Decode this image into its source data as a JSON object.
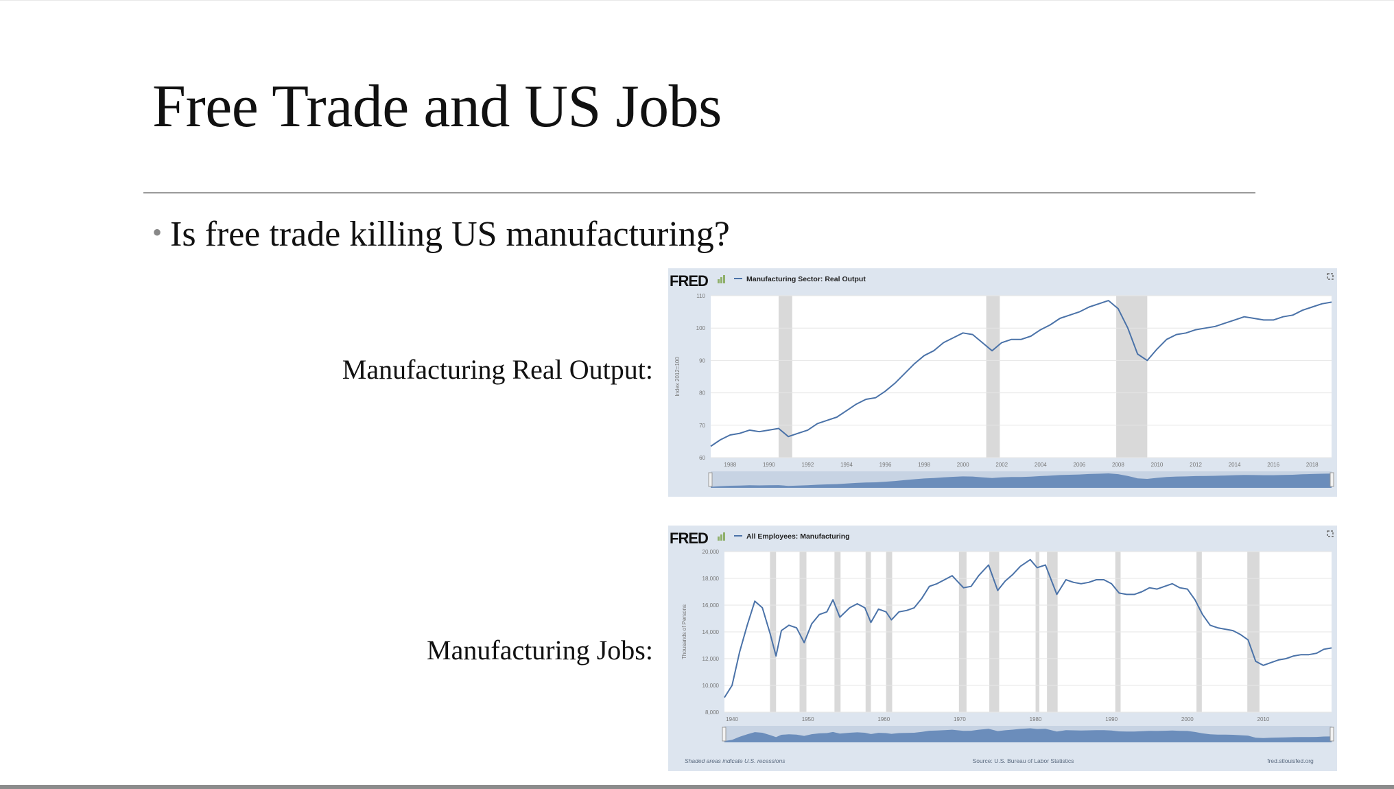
{
  "slide": {
    "title": "Free Trade and US Jobs",
    "bullet": "Is free trade killing US manufacturing?",
    "label_output": "Manufacturing Real Output:",
    "label_jobs": "Manufacturing Jobs:"
  },
  "colors": {
    "series": "#4a72a8",
    "recession": "#d9d9d9",
    "panel": "#dde5ef",
    "plot_bg": "#ffffff"
  },
  "chart_data": [
    {
      "type": "line",
      "brand": "FRED",
      "series_name": "Manufacturing Sector: Real Output",
      "ylabel": "Index 2012=100",
      "ylim": [
        60,
        110
      ],
      "yticks": [
        "60",
        "70",
        "80",
        "90",
        "100",
        "110"
      ],
      "xlim": [
        1987,
        2019
      ],
      "xticks": [
        "1988",
        "1990",
        "1992",
        "1994",
        "1996",
        "1998",
        "2000",
        "2002",
        "2004",
        "2006",
        "2008",
        "2010",
        "2012",
        "2014",
        "2016",
        "2018"
      ],
      "recessions": [
        [
          1990.5,
          1991.2
        ],
        [
          2001.2,
          2001.9
        ],
        [
          2007.9,
          2009.5
        ]
      ],
      "points": [
        [
          1987.0,
          63.5
        ],
        [
          1987.5,
          65.5
        ],
        [
          1988.0,
          67.0
        ],
        [
          1988.5,
          67.5
        ],
        [
          1989.0,
          68.5
        ],
        [
          1989.5,
          68.0
        ],
        [
          1990.0,
          68.5
        ],
        [
          1990.5,
          69.0
        ],
        [
          1991.0,
          66.5
        ],
        [
          1991.5,
          67.5
        ],
        [
          1992.0,
          68.5
        ],
        [
          1992.5,
          70.5
        ],
        [
          1993.0,
          71.5
        ],
        [
          1993.5,
          72.5
        ],
        [
          1994.0,
          74.5
        ],
        [
          1994.5,
          76.5
        ],
        [
          1995.0,
          78.0
        ],
        [
          1995.5,
          78.5
        ],
        [
          1996.0,
          80.5
        ],
        [
          1996.5,
          83.0
        ],
        [
          1997.0,
          86.0
        ],
        [
          1997.5,
          89.0
        ],
        [
          1998.0,
          91.5
        ],
        [
          1998.5,
          93.0
        ],
        [
          1999.0,
          95.5
        ],
        [
          1999.5,
          97.0
        ],
        [
          2000.0,
          98.5
        ],
        [
          2000.5,
          98.0
        ],
        [
          2001.0,
          95.5
        ],
        [
          2001.5,
          93.0
        ],
        [
          2002.0,
          95.5
        ],
        [
          2002.5,
          96.5
        ],
        [
          2003.0,
          96.5
        ],
        [
          2003.5,
          97.5
        ],
        [
          2004.0,
          99.5
        ],
        [
          2004.5,
          101.0
        ],
        [
          2005.0,
          103.0
        ],
        [
          2005.5,
          104.0
        ],
        [
          2006.0,
          105.0
        ],
        [
          2006.5,
          106.5
        ],
        [
          2007.0,
          107.5
        ],
        [
          2007.5,
          108.5
        ],
        [
          2008.0,
          106.0
        ],
        [
          2008.5,
          100.0
        ],
        [
          2009.0,
          92.0
        ],
        [
          2009.5,
          90.0
        ],
        [
          2010.0,
          93.5
        ],
        [
          2010.5,
          96.5
        ],
        [
          2011.0,
          98.0
        ],
        [
          2011.5,
          98.5
        ],
        [
          2012.0,
          99.5
        ],
        [
          2012.5,
          100.0
        ],
        [
          2013.0,
          100.5
        ],
        [
          2013.5,
          101.5
        ],
        [
          2014.0,
          102.5
        ],
        [
          2014.5,
          103.5
        ],
        [
          2015.0,
          103.0
        ],
        [
          2015.5,
          102.5
        ],
        [
          2016.0,
          102.5
        ],
        [
          2016.5,
          103.5
        ],
        [
          2017.0,
          104.0
        ],
        [
          2017.5,
          105.5
        ],
        [
          2018.0,
          106.5
        ],
        [
          2018.5,
          107.5
        ],
        [
          2019.0,
          108.0
        ]
      ]
    },
    {
      "type": "line",
      "brand": "FRED",
      "series_name": "All Employees: Manufacturing",
      "ylabel": "Thousands of Persons",
      "ylim": [
        8000,
        20000
      ],
      "yticks": [
        "8,000",
        "10,000",
        "12,000",
        "14,000",
        "16,000",
        "18,000",
        "20,000"
      ],
      "xlim": [
        1939,
        2019
      ],
      "xticks": [
        "1940",
        "1950",
        "1960",
        "1970",
        "1980",
        "1990",
        "2000",
        "2010"
      ],
      "recessions": [
        [
          1945.0,
          1945.8
        ],
        [
          1948.9,
          1949.8
        ],
        [
          1953.5,
          1954.3
        ],
        [
          1957.6,
          1958.3
        ],
        [
          1960.3,
          1961.1
        ],
        [
          1969.9,
          1970.9
        ],
        [
          1973.9,
          1975.2
        ],
        [
          1980.0,
          1980.5
        ],
        [
          1981.5,
          1982.9
        ],
        [
          1990.5,
          1991.2
        ],
        [
          2001.2,
          2001.9
        ],
        [
          2007.9,
          2009.5
        ]
      ],
      "footer_left": "Shaded areas indicate U.S. recessions",
      "footer_center": "Source: U.S. Bureau of Labor Statistics",
      "footer_right": "fred.stlouisfed.org",
      "points": [
        [
          1939.0,
          9100
        ],
        [
          1940.0,
          10000
        ],
        [
          1941.0,
          12500
        ],
        [
          1942.0,
          14500
        ],
        [
          1943.0,
          16300
        ],
        [
          1944.0,
          15800
        ],
        [
          1945.0,
          13900
        ],
        [
          1945.8,
          12200
        ],
        [
          1946.5,
          14100
        ],
        [
          1947.5,
          14500
        ],
        [
          1948.5,
          14300
        ],
        [
          1949.5,
          13200
        ],
        [
          1950.5,
          14600
        ],
        [
          1951.5,
          15300
        ],
        [
          1952.5,
          15500
        ],
        [
          1953.3,
          16400
        ],
        [
          1954.2,
          15100
        ],
        [
          1955.5,
          15800
        ],
        [
          1956.5,
          16100
        ],
        [
          1957.5,
          15800
        ],
        [
          1958.3,
          14700
        ],
        [
          1959.3,
          15700
        ],
        [
          1960.3,
          15500
        ],
        [
          1961.0,
          14900
        ],
        [
          1962.0,
          15500
        ],
        [
          1963.0,
          15600
        ],
        [
          1964.0,
          15800
        ],
        [
          1965.0,
          16500
        ],
        [
          1966.0,
          17400
        ],
        [
          1967.0,
          17600
        ],
        [
          1968.0,
          17900
        ],
        [
          1969.0,
          18200
        ],
        [
          1970.5,
          17300
        ],
        [
          1971.5,
          17400
        ],
        [
          1972.5,
          18200
        ],
        [
          1973.8,
          19000
        ],
        [
          1975.0,
          17100
        ],
        [
          1976.0,
          17800
        ],
        [
          1977.0,
          18300
        ],
        [
          1978.0,
          18900
        ],
        [
          1979.3,
          19400
        ],
        [
          1980.2,
          18800
        ],
        [
          1981.3,
          19000
        ],
        [
          1982.8,
          16800
        ],
        [
          1984.0,
          17900
        ],
        [
          1985.0,
          17700
        ],
        [
          1986.0,
          17600
        ],
        [
          1987.0,
          17700
        ],
        [
          1988.0,
          17900
        ],
        [
          1989.0,
          17900
        ],
        [
          1990.0,
          17600
        ],
        [
          1991.0,
          16900
        ],
        [
          1992.0,
          16800
        ],
        [
          1993.0,
          16800
        ],
        [
          1994.0,
          17000
        ],
        [
          1995.0,
          17300
        ],
        [
          1996.0,
          17200
        ],
        [
          1997.0,
          17400
        ],
        [
          1998.0,
          17600
        ],
        [
          1999.0,
          17300
        ],
        [
          2000.0,
          17200
        ],
        [
          2001.0,
          16400
        ],
        [
          2002.0,
          15300
        ],
        [
          2003.0,
          14500
        ],
        [
          2004.0,
          14300
        ],
        [
          2005.0,
          14200
        ],
        [
          2006.0,
          14100
        ],
        [
          2007.0,
          13800
        ],
        [
          2008.0,
          13400
        ],
        [
          2009.0,
          11800
        ],
        [
          2010.0,
          11500
        ],
        [
          2011.0,
          11700
        ],
        [
          2012.0,
          11900
        ],
        [
          2013.0,
          12000
        ],
        [
          2014.0,
          12200
        ],
        [
          2015.0,
          12300
        ],
        [
          2016.0,
          12300
        ],
        [
          2017.0,
          12400
        ],
        [
          2018.0,
          12700
        ],
        [
          2019.0,
          12800
        ]
      ]
    }
  ]
}
